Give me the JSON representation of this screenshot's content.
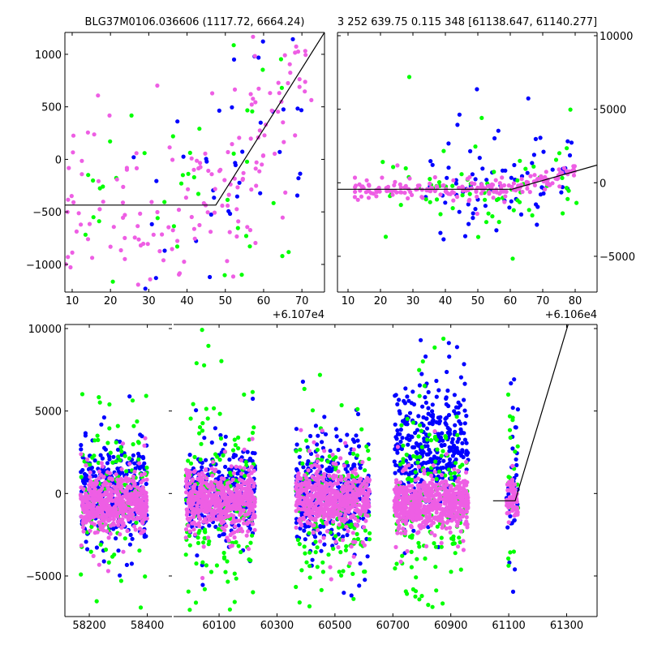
{
  "colors": {
    "blue": "#0000ff",
    "green": "#00ff00",
    "pink": "#ee5ee4",
    "model": "#000000"
  },
  "chart_data": [
    {
      "id": "top-left",
      "type": "scatter",
      "title": "BLG37M0106.036606 (1117.72, 6664.24)",
      "xlim": [
        8.1,
        75.9
      ],
      "ylim": [
        -1263,
        1208
      ],
      "x_offset_label": "+6.107e4",
      "xticks": [
        10,
        20,
        30,
        40,
        50,
        60,
        70
      ],
      "yticks": [
        -1000,
        -500,
        0,
        500,
        1000
      ],
      "yticks_side": "left",
      "model_line": [
        [
          8.1,
          -435
        ],
        [
          47.5,
          -435
        ],
        [
          75.9,
          1208
        ]
      ],
      "series": [
        {
          "name": "blue",
          "n": 45,
          "xrange": [
            26,
            70
          ],
          "sd": 650
        },
        {
          "name": "green",
          "n": 45,
          "xrange": [
            12,
            68
          ],
          "sd": 600
        },
        {
          "name": "pink",
          "n": 170,
          "xrange": [
            8,
            74
          ],
          "sd": 420
        }
      ]
    },
    {
      "id": "top-right",
      "type": "scatter",
      "title": "3 252 639.75 0.115 348 [61138.647, 61140.277]",
      "xlim": [
        6.75,
        86.75
      ],
      "ylim": [
        -7430,
        10220
      ],
      "x_offset_label": "+6.106e4",
      "xticks": [
        10,
        20,
        30,
        40,
        50,
        60,
        70,
        80
      ],
      "yticks": [
        -5000,
        0,
        5000,
        10000
      ],
      "yticks_side": "right",
      "model_line": [
        [
          6.75,
          -440
        ],
        [
          60.5,
          -440
        ],
        [
          86.75,
          1200
        ]
      ],
      "series": [
        {
          "name": "blue",
          "n": 80,
          "xrange": [
            33,
            80
          ],
          "sd": 1500
        },
        {
          "name": "green",
          "n": 70,
          "xrange": [
            20,
            81
          ],
          "sd": 1300
        },
        {
          "name": "pink",
          "n": 200,
          "xrange": [
            12,
            80
          ],
          "sd": 280
        }
      ]
    },
    {
      "id": "bottom",
      "type": "scatter",
      "title": "",
      "broken_x_axis": true,
      "segments": [
        {
          "xlim": [
            58116,
            58485
          ],
          "xticks": [
            58200,
            58400
          ]
        },
        {
          "xlim": [
            59943,
            61405
          ],
          "xticks": [
            60100,
            60300,
            60500,
            60700,
            60900,
            61100,
            61300
          ]
        }
      ],
      "ylim": [
        -7460,
        10245
      ],
      "yticks": [
        -5000,
        0,
        5000,
        10000
      ],
      "model_line": [
        [
          61046,
          -440
        ],
        [
          61122,
          -440
        ],
        [
          61305,
          10245
        ]
      ],
      "clusters": [
        {
          "xrange": [
            58170,
            58400
          ],
          "blue": [
            330,
            1400,
            300
          ],
          "green": [
            140,
            2300,
            -300
          ],
          "pink": [
            520,
            700,
            -600
          ]
        },
        {
          "xrange": [
            59985,
            60225
          ],
          "blue": [
            330,
            1200,
            200
          ],
          "green": [
            160,
            2400,
            0
          ],
          "pink": [
            520,
            800,
            -500
          ]
        },
        {
          "xrange": [
            60365,
            60620
          ],
          "blue": [
            380,
            1500,
            0
          ],
          "green": [
            170,
            2500,
            -900
          ],
          "pink": [
            540,
            800,
            -300
          ]
        },
        {
          "xrange": [
            60705,
            60960
          ],
          "blue": [
            380,
            2600,
            1200
          ],
          "green": [
            190,
            2600,
            0
          ],
          "pink": [
            560,
            750,
            -500
          ]
        },
        {
          "xrange": [
            61092,
            61132
          ],
          "blue": [
            40,
            2000,
            300
          ],
          "green": [
            25,
            2500,
            0
          ],
          "pink": [
            90,
            600,
            -300
          ]
        }
      ]
    }
  ]
}
